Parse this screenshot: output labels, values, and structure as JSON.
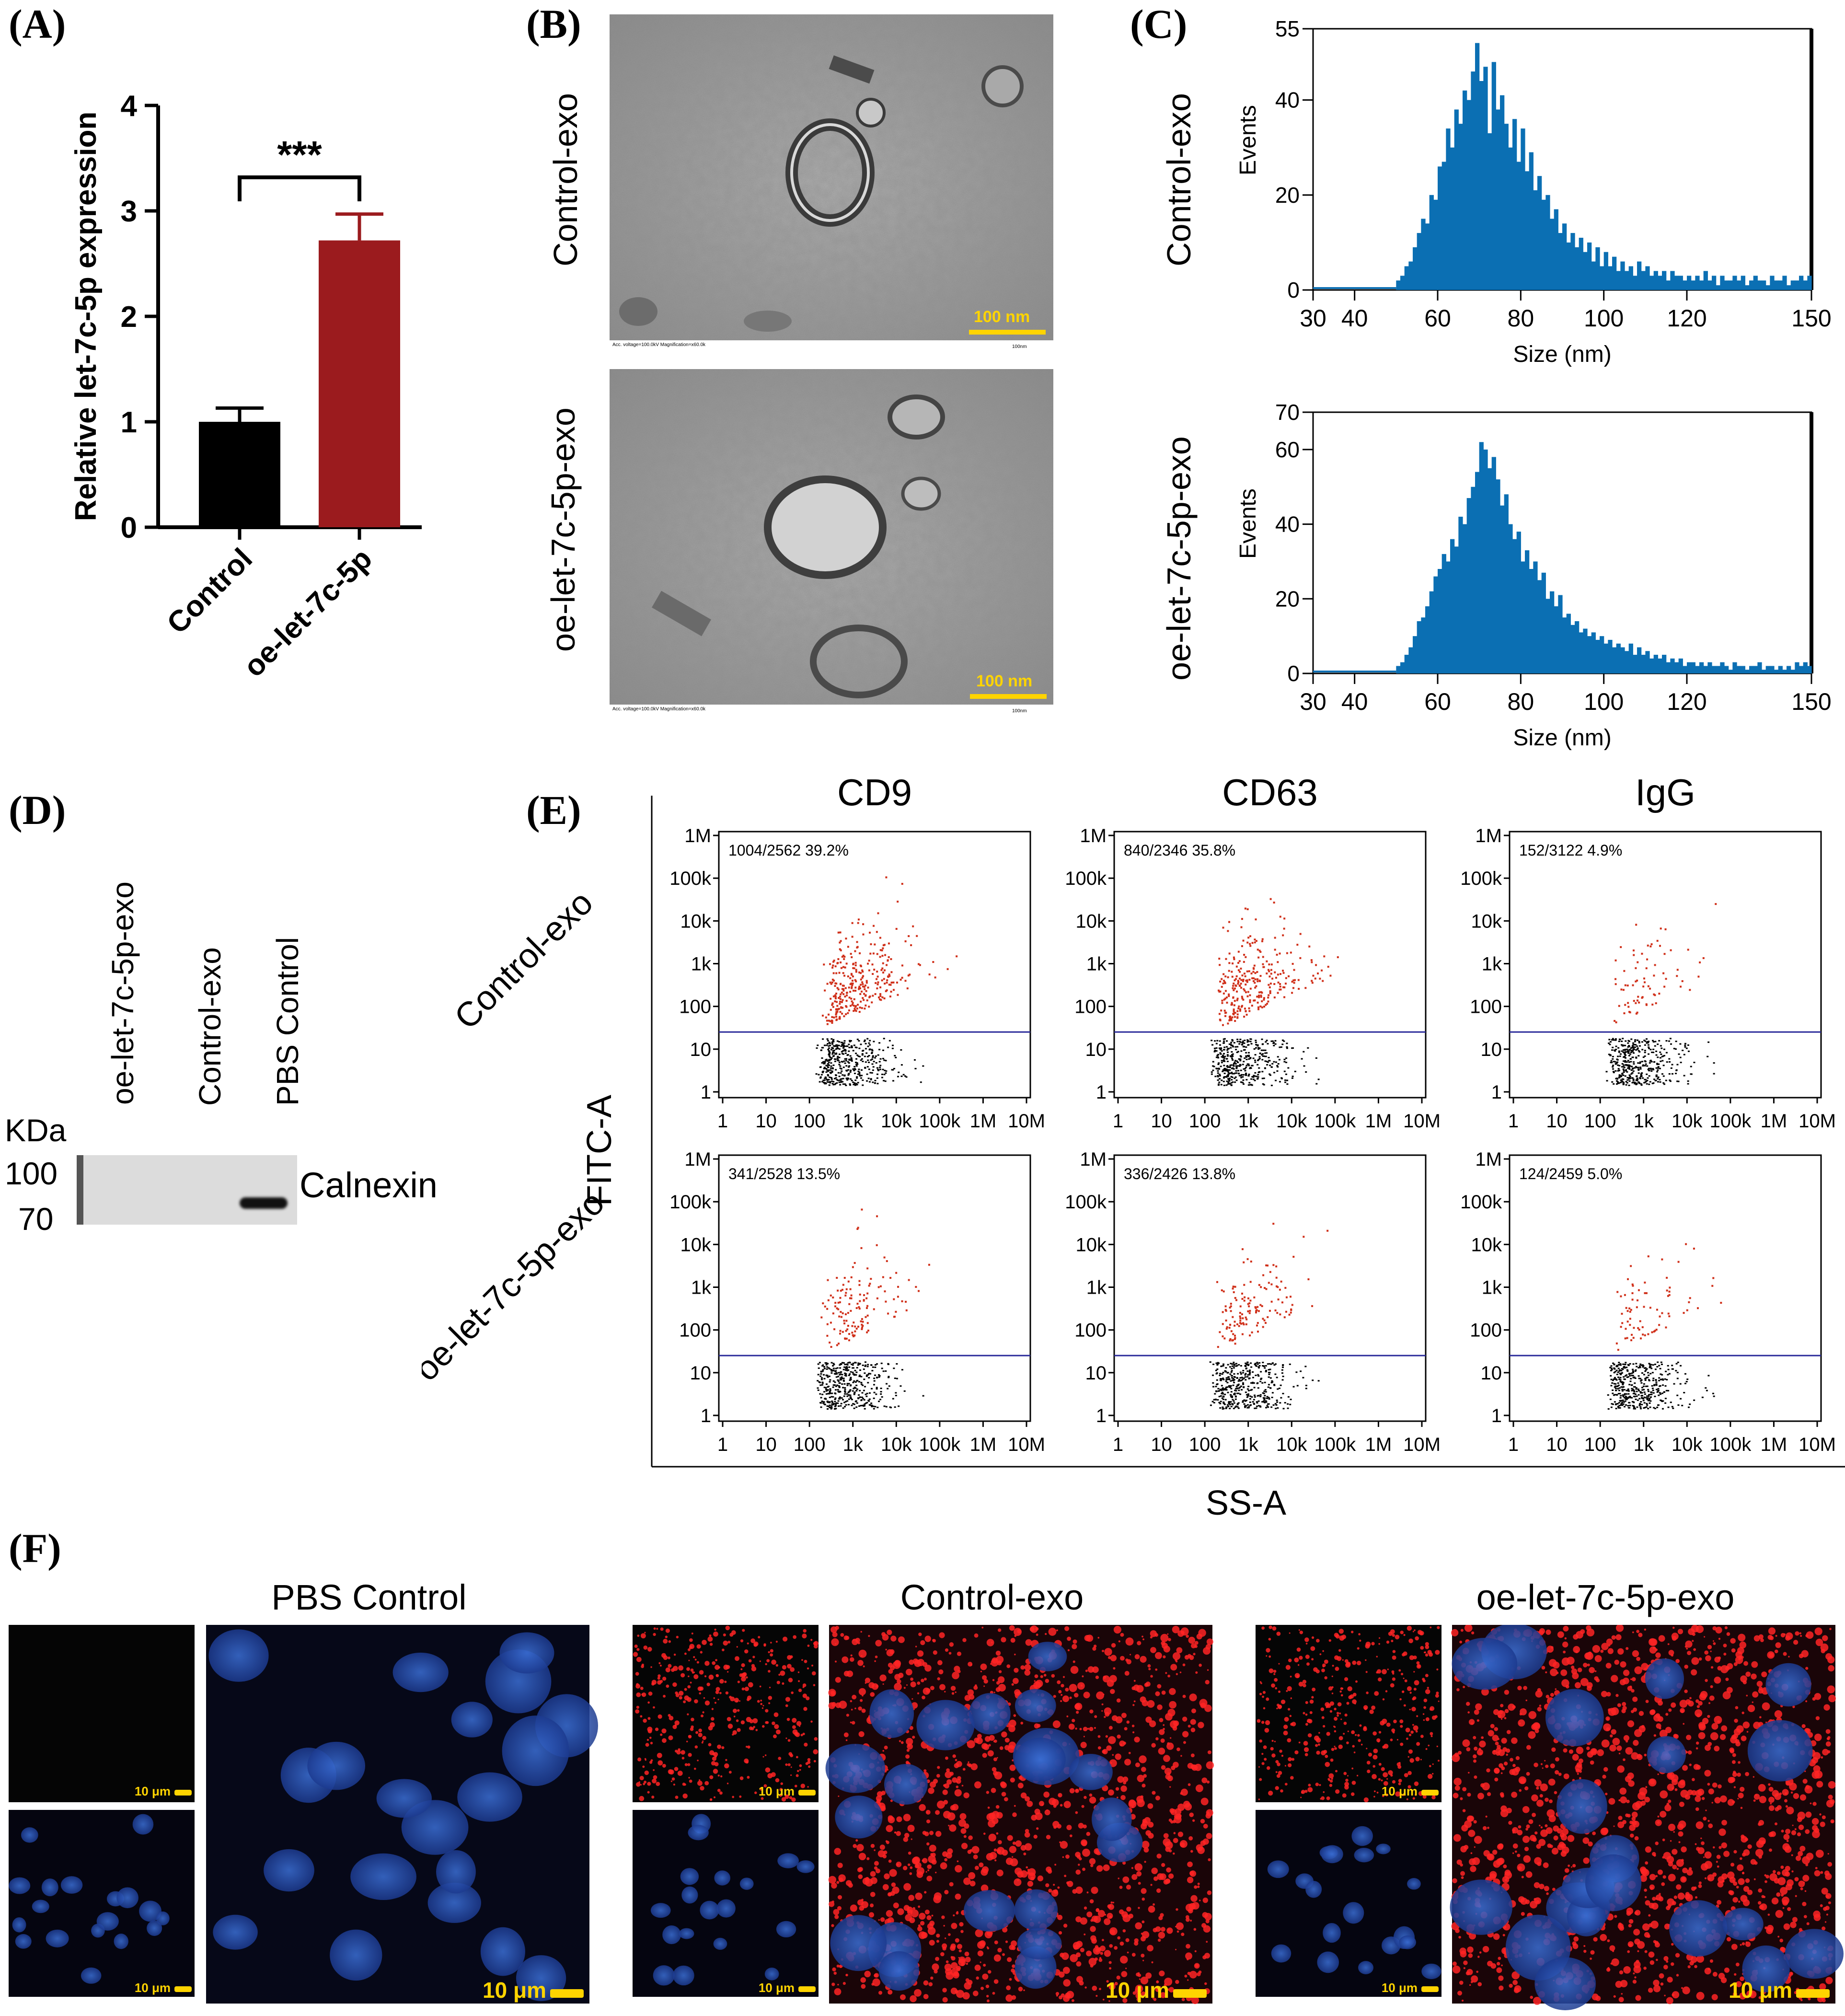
{
  "panels": {
    "A": {
      "label": "(A)",
      "chart_data": {
        "type": "bar",
        "categories": [
          "Control",
          "oe-let-7c-5p"
        ],
        "values": [
          1.0,
          2.72
        ],
        "errors": [
          0.13,
          0.25
        ],
        "colors": [
          "#000000",
          "#9b1b1e"
        ],
        "ylabel": "Relative let-7c-5p expression",
        "ylim": [
          0,
          4
        ],
        "yticks": [
          "0",
          "1",
          "2",
          "3",
          "4"
        ],
        "significance": "***"
      }
    },
    "B": {
      "label": "(B)",
      "rows": [
        "Control-exo",
        "oe-let-7c-5p-exo"
      ],
      "scale_label": "100 nm",
      "micro_caption": "Acc. voltage=100.0kV  Magnification=x60.0k",
      "micro_caption_right": "100nm"
    },
    "C": {
      "label": "(C)",
      "rows": [
        {
          "name": "Control-exo",
          "chart_data": {
            "type": "bar",
            "title": "",
            "xlabel": "Size (nm)",
            "ylabel": "Events",
            "xlim": [
              30,
              150
            ],
            "ylim": [
              0,
              55
            ],
            "xticks": [
              "30",
              "40",
              "60",
              "80",
              "100",
              "120",
              "150"
            ],
            "yticks": [
              "0",
              "20",
              "40",
              "55"
            ],
            "color": "#0b6fb3",
            "x": [
              50,
              51,
              52,
              53,
              54,
              55,
              56,
              57,
              58,
              59,
              60,
              61,
              62,
              63,
              64,
              65,
              66,
              67,
              68,
              69,
              70,
              71,
              72,
              73,
              74,
              75,
              76,
              77,
              78,
              79,
              80,
              81,
              82,
              83,
              84,
              85,
              86,
              87,
              88,
              89,
              90,
              91,
              92,
              93,
              94,
              95,
              96,
              97,
              98,
              99,
              100,
              101,
              102,
              103,
              104,
              105,
              106,
              107,
              108,
              109,
              110,
              111,
              112,
              113,
              114,
              115,
              116,
              117,
              118,
              119,
              120,
              121,
              122,
              123,
              124,
              125,
              126,
              127,
              128,
              129,
              130,
              131,
              132,
              133,
              134,
              135,
              136,
              137,
              138,
              139,
              140,
              141,
              142,
              143,
              144,
              145,
              146,
              147,
              148,
              149
            ],
            "values": [
              2,
              3,
              5,
              6,
              9,
              12,
              15,
              14,
              20,
              19,
              26,
              27,
              34,
              30,
              38,
              35,
              42,
              40,
              46,
              52,
              44,
              47,
              33,
              48,
              38,
              41,
              35,
              30,
              36,
              27,
              34,
              25,
              29,
              21,
              24,
              19,
              20,
              15,
              17,
              12,
              14,
              10,
              12,
              9,
              11,
              8,
              10,
              6,
              9,
              5,
              8,
              5,
              7,
              4,
              6,
              4,
              5,
              3,
              6,
              4,
              5,
              3,
              4,
              3,
              4,
              2,
              4,
              3,
              3,
              2,
              3,
              2,
              3,
              2,
              4,
              2,
              3,
              1,
              3,
              2,
              2,
              3,
              2,
              3,
              1,
              2,
              3,
              2,
              2,
              1,
              3,
              2,
              2,
              3,
              1,
              2,
              2,
              3,
              2,
              3
            ]
          }
        },
        {
          "name": "oe-let-7c-5p-exo",
          "chart_data": {
            "type": "bar",
            "title": "",
            "xlabel": "Size (nm)",
            "ylabel": "Events",
            "xlim": [
              30,
              150
            ],
            "ylim": [
              0,
              70
            ],
            "xticks": [
              "30",
              "40",
              "60",
              "80",
              "100",
              "120",
              "150"
            ],
            "yticks": [
              "0",
              "20",
              "40",
              "60",
              "70"
            ],
            "color": "#0b6fb3",
            "x": [
              50,
              51,
              52,
              53,
              54,
              55,
              56,
              57,
              58,
              59,
              60,
              61,
              62,
              63,
              64,
              65,
              66,
              67,
              68,
              69,
              70,
              71,
              72,
              73,
              74,
              75,
              76,
              77,
              78,
              79,
              80,
              81,
              82,
              83,
              84,
              85,
              86,
              87,
              88,
              89,
              90,
              91,
              92,
              93,
              94,
              95,
              96,
              97,
              98,
              99,
              100,
              101,
              102,
              103,
              104,
              105,
              106,
              107,
              108,
              109,
              110,
              111,
              112,
              113,
              114,
              115,
              116,
              117,
              118,
              119,
              120,
              121,
              122,
              123,
              124,
              125,
              126,
              127,
              128,
              129,
              130,
              131,
              132,
              133,
              134,
              135,
              136,
              137,
              138,
              139,
              140,
              141,
              142,
              143,
              144,
              145,
              146,
              147,
              148,
              149
            ],
            "values": [
              2,
              3,
              5,
              7,
              10,
              14,
              15,
              18,
              22,
              26,
              28,
              32,
              30,
              36,
              34,
              42,
              40,
              47,
              50,
              54,
              62,
              60,
              55,
              58,
              52,
              45,
              48,
              40,
              36,
              38,
              30,
              33,
              28,
              30,
              25,
              27,
              20,
              22,
              18,
              21,
              15,
              16,
              13,
              14,
              11,
              12,
              10,
              11,
              9,
              10,
              8,
              9,
              7,
              8,
              7,
              6,
              8,
              5,
              7,
              5,
              6,
              4,
              5,
              4,
              5,
              3,
              4,
              3,
              4,
              2,
              3,
              3,
              2,
              3,
              2,
              3,
              2,
              2,
              3,
              2,
              1,
              3,
              2,
              2,
              1,
              2,
              2,
              3,
              1,
              2,
              2,
              1,
              2,
              1,
              2,
              1,
              3,
              2,
              3,
              2
            ]
          }
        }
      ]
    },
    "D": {
      "label": "(D)",
      "lanes": [
        "oe-let-7c-5p-exo",
        "Control-exo",
        "PBS Control"
      ],
      "unit": "KDa",
      "markers": [
        "100",
        "70"
      ],
      "protein": "Calnexin"
    },
    "E": {
      "label": "(E)",
      "columns": [
        "CD9",
        "CD63",
        "IgG"
      ],
      "rows": [
        "Control-exo",
        "oe-let-7c-5p-exo"
      ],
      "ylabel": "FITC-A",
      "xlabel": "SS-A",
      "axis_ticks_y": [
        "1M",
        "100k",
        "10k",
        "1k",
        "100",
        "10",
        "1"
      ],
      "axis_ticks_x": [
        "1",
        "10",
        "100",
        "1k",
        "10k",
        "100k",
        "1M",
        "10M"
      ],
      "gate_color": "#2a2a9a",
      "positive_color": "#d0301a",
      "negative_color": "#000000",
      "stats": [
        [
          "1004/2562  39.2%",
          "840/2346  35.8%",
          "152/3122  4.9%"
        ],
        [
          "341/2528  13.5%",
          "336/2426  13.8%",
          "124/2459  5.0%"
        ]
      ]
    },
    "F": {
      "label": "(F)",
      "groups": [
        "PBS Control",
        "Control-exo",
        "oe-let-7c-5p-exo"
      ],
      "scale_label": "10 μm"
    }
  }
}
